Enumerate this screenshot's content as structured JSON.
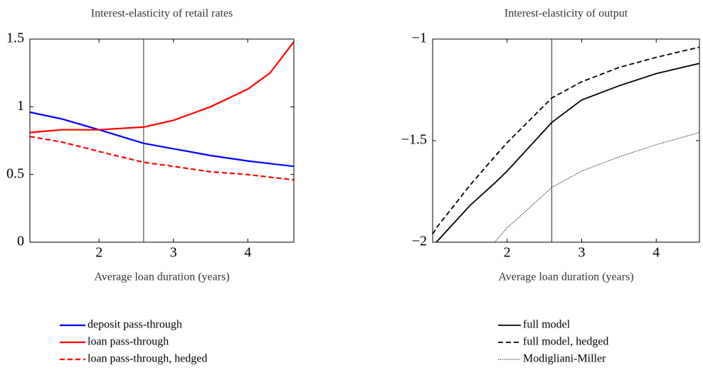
{
  "chart_data": [
    {
      "type": "line",
      "title": "Interest-elasticity of retail rates",
      "x_label": "Average loan duration (years)",
      "x": [
        1.07,
        1.5,
        2,
        2.6,
        3,
        3.5,
        4,
        4.3,
        4.62
      ],
      "series": [
        {
          "name": "deposit pass-through",
          "color": "#0000ff",
          "style": "solid",
          "values": [
            0.96,
            0.91,
            0.83,
            0.73,
            0.69,
            0.64,
            0.6,
            0.58,
            0.56
          ]
        },
        {
          "name": "loan pass-through",
          "color": "#ff0000",
          "style": "solid",
          "values": [
            0.81,
            0.83,
            0.83,
            0.85,
            0.9,
            1.0,
            1.13,
            1.25,
            1.48
          ]
        },
        {
          "name": "loan pass-through, hedged",
          "color": "#ff0000",
          "style": "dashed",
          "values": [
            0.78,
            0.74,
            0.67,
            0.59,
            0.56,
            0.52,
            0.5,
            0.48,
            0.46
          ]
        }
      ],
      "xlim": [
        1.07,
        4.62
      ],
      "xticks": [
        2,
        3,
        4
      ],
      "ylim": [
        0,
        1.5
      ],
      "yticks": [
        0,
        0.5,
        1,
        1.5
      ],
      "vline": 2.6
    },
    {
      "type": "line",
      "title": "Interest-elasticity of output",
      "x_label": "Average loan duration (years)",
      "x": [
        1.0,
        1.05,
        1.5,
        1.83,
        2,
        2.6,
        3,
        3.5,
        4,
        4.58
      ],
      "series": [
        {
          "name": "full model",
          "color": "#000000",
          "style": "solid",
          "values": [
            null,
            -2.0,
            -1.82,
            -1.71,
            -1.65,
            -1.41,
            -1.3,
            -1.23,
            -1.17,
            -1.12
          ]
        },
        {
          "name": "full model, hedged",
          "color": "#000000",
          "style": "dashed",
          "values": [
            -1.96,
            -1.93,
            -1.72,
            -1.58,
            -1.51,
            -1.29,
            -1.21,
            -1.14,
            -1.09,
            -1.04
          ]
        },
        {
          "name": "Modigliani-Miller",
          "color": "#000000",
          "style": "dotted",
          "values": [
            null,
            null,
            null,
            -2.0,
            -1.93,
            -1.73,
            -1.65,
            -1.58,
            -1.52,
            -1.46
          ]
        }
      ],
      "xlim": [
        1.0,
        4.58
      ],
      "xticks": [
        2,
        3,
        4
      ],
      "ylim": [
        -2,
        -1
      ],
      "yticks": [
        {
          "value": -2,
          "label": "−2"
        },
        {
          "value": -1.5,
          "label": "−1.5"
        },
        {
          "value": -1,
          "label": "−1"
        }
      ],
      "vline": 2.6
    }
  ]
}
